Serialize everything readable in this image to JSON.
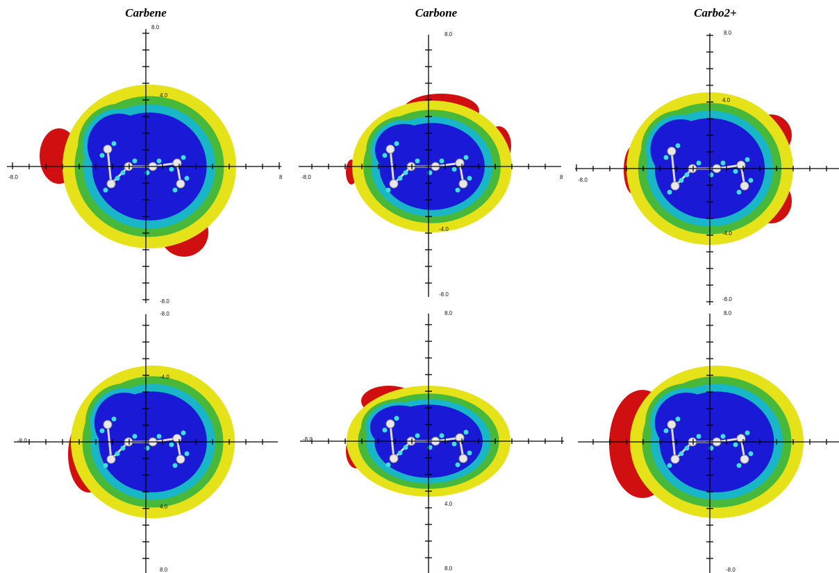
{
  "titles": [
    "Carbene",
    "Carbone",
    "Carbo2+"
  ],
  "panels": [
    {
      "labels": [
        "8.0",
        "4.0",
        "-8.0",
        "8",
        "-8.0"
      ]
    },
    {
      "labels": [
        "8.0",
        "-8.0",
        "8",
        "-4.0",
        "-8.0"
      ]
    },
    {
      "labels": [
        "8.0",
        "4.0",
        "-8.0",
        "-4.0",
        "-8.0"
      ]
    },
    {
      "labels": [
        "-8.0",
        "-4.0",
        "-8.0",
        "4.0",
        "8.0"
      ]
    },
    {
      "labels": [
        "8.0",
        "-8.0",
        "4.0",
        "8.0"
      ]
    },
    {
      "labels": [
        "8.0",
        "-8.0"
      ]
    }
  ]
}
